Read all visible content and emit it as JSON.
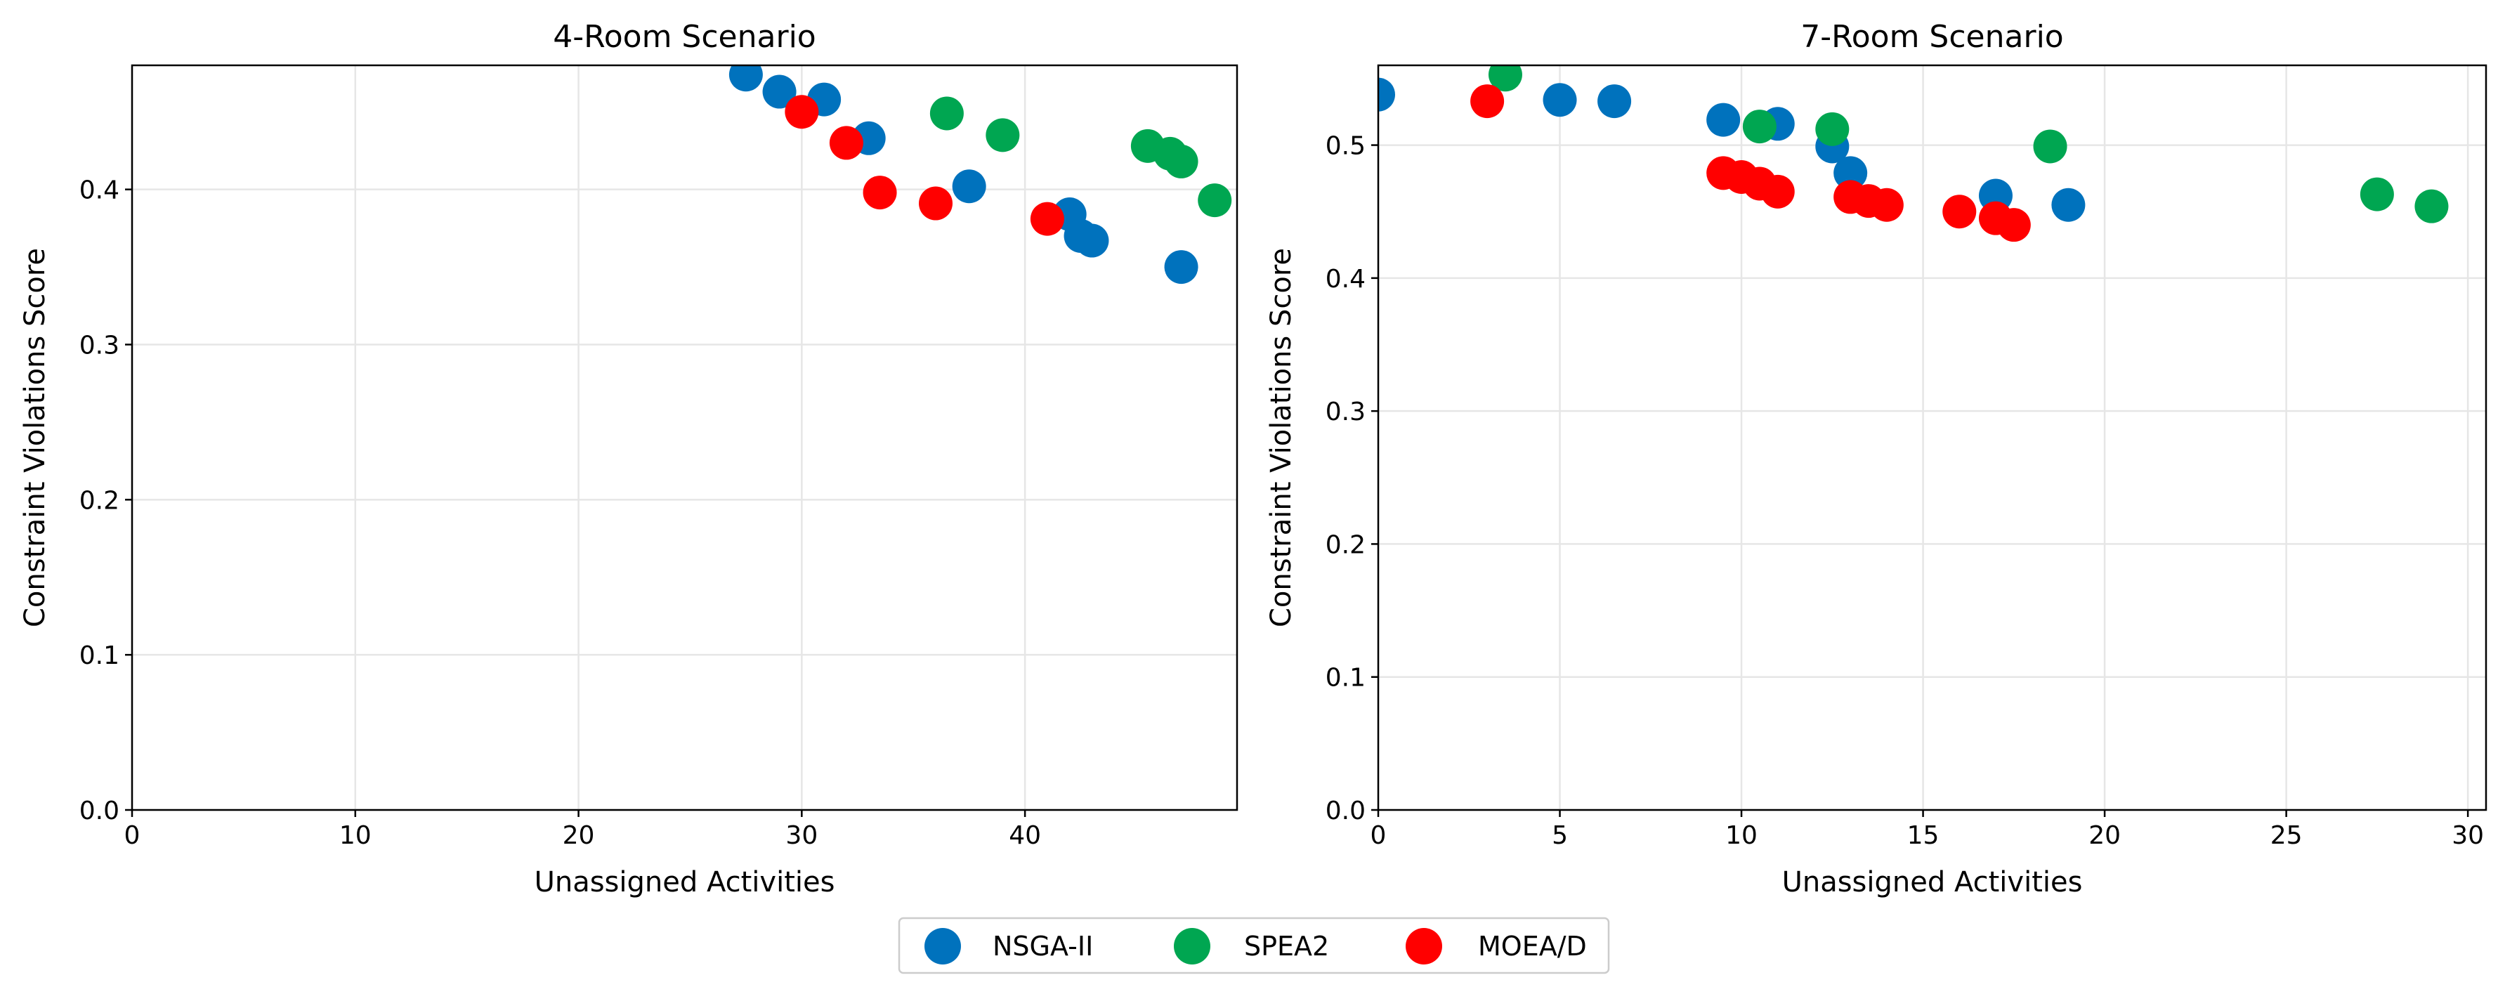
{
  "colors": {
    "NSGA-II": "#0072BD",
    "SPEA2": "#00A651",
    "MOEA/D": "#FF0000"
  },
  "legend": {
    "placement": "bottom-center",
    "items": [
      {
        "label": "NSGA-II",
        "color": "#0072BD"
      },
      {
        "label": "SPEA2",
        "color": "#00A651"
      },
      {
        "label": "MOEA/D",
        "color": "#FF0000"
      }
    ]
  },
  "chart_data": [
    {
      "type": "scatter",
      "title": "4-Room Scenario",
      "xlabel": "Unassigned Activities",
      "ylabel": "Constraint Violations Score",
      "xlim": [
        0,
        49.5
      ],
      "ylim": [
        0,
        0.48
      ],
      "xticks": [
        0,
        10,
        20,
        30,
        40
      ],
      "yticks": [
        0.0,
        0.1,
        0.2,
        0.3,
        0.4
      ],
      "grid": true,
      "series": [
        {
          "name": "NSGA-II",
          "x": [
            27.5,
            29,
            31,
            33,
            37.5,
            42,
            42.5,
            43,
            47
          ],
          "y": [
            0.474,
            0.463,
            0.458,
            0.433,
            0.402,
            0.384,
            0.37,
            0.367,
            0.35
          ]
        },
        {
          "name": "SPEA2",
          "x": [
            36.5,
            39,
            45.5,
            46.5,
            47,
            48.5
          ],
          "y": [
            0.449,
            0.435,
            0.428,
            0.423,
            0.418,
            0.393
          ]
        },
        {
          "name": "MOEA/D",
          "x": [
            30,
            32,
            33.5,
            36,
            41
          ],
          "y": [
            0.45,
            0.43,
            0.398,
            0.391,
            0.381
          ]
        }
      ]
    },
    {
      "type": "scatter",
      "title": "7-Room Scenario",
      "xlabel": "Unassigned Activities",
      "ylabel": "Constraint Violations Score",
      "xlim": [
        0,
        30.5
      ],
      "ylim": [
        0,
        0.56
      ],
      "xticks": [
        0,
        5,
        10,
        15,
        20,
        25,
        30
      ],
      "yticks": [
        0.0,
        0.1,
        0.2,
        0.3,
        0.4,
        0.5
      ],
      "grid": true,
      "series": [
        {
          "name": "NSGA-II",
          "x": [
            0,
            5,
            6.5,
            9.5,
            11,
            12.5,
            13,
            17,
            19
          ],
          "y": [
            0.538,
            0.534,
            0.533,
            0.519,
            0.516,
            0.499,
            0.479,
            0.462,
            0.455
          ]
        },
        {
          "name": "SPEA2",
          "x": [
            3.5,
            10.5,
            12.5,
            18.5,
            27.5,
            29
          ],
          "y": [
            0.553,
            0.514,
            0.512,
            0.499,
            0.463,
            0.454
          ]
        },
        {
          "name": "MOEA/D",
          "x": [
            3,
            9.5,
            10,
            10.5,
            11,
            13,
            13.5,
            14,
            16,
            17,
            17.5
          ],
          "y": [
            0.533,
            0.479,
            0.476,
            0.471,
            0.465,
            0.461,
            0.458,
            0.455,
            0.45,
            0.445,
            0.44
          ]
        }
      ]
    }
  ]
}
